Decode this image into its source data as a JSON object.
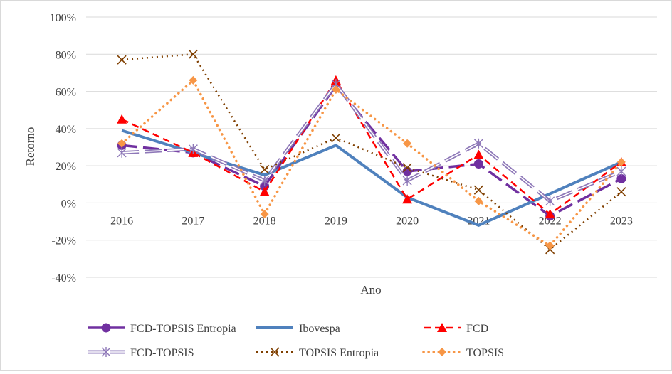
{
  "chart_data": {
    "type": "line",
    "title": "",
    "xlabel": "Ano",
    "ylabel": "Retorno",
    "categories": [
      "2016",
      "2017",
      "2018",
      "2019",
      "2020",
      "2021",
      "2022",
      "2023"
    ],
    "ylim": [
      -0.4,
      1.0
    ],
    "yticks": [
      -0.4,
      -0.2,
      0,
      0.2,
      0.4,
      0.6,
      0.8,
      1.0
    ],
    "ytick_labels": [
      "-40%",
      "-20%",
      "0%",
      "20%",
      "40%",
      "60%",
      "80%",
      "100%"
    ],
    "grid": true,
    "legend_position": "bottom",
    "series": [
      {
        "name": "FCD-TOPSIS Entropia",
        "color": "#7030a0",
        "style": "long-dash",
        "marker": "circle",
        "values": [
          0.31,
          0.27,
          0.09,
          0.63,
          0.17,
          0.21,
          -0.07,
          0.13
        ]
      },
      {
        "name": "Ibovespa",
        "color": "#4f81bd",
        "style": "solid",
        "marker": "none",
        "values": [
          0.39,
          0.27,
          0.15,
          0.31,
          0.03,
          -0.12,
          0.05,
          0.22
        ]
      },
      {
        "name": "FCD",
        "color": "#ff0000",
        "style": "dash",
        "marker": "triangle",
        "values": [
          0.45,
          0.27,
          0.06,
          0.66,
          0.02,
          0.26,
          -0.06,
          0.22
        ]
      },
      {
        "name": "FCD-TOPSIS",
        "color": "#8e78b8",
        "style": "double-long-dash",
        "marker": "asterisk",
        "values": [
          0.27,
          0.29,
          0.12,
          0.64,
          0.12,
          0.32,
          0.01,
          0.17
        ]
      },
      {
        "name": "TOPSIS Entropia",
        "color": "#7f3f00",
        "style": "dot",
        "marker": "x",
        "values": [
          0.77,
          0.8,
          0.18,
          0.35,
          0.19,
          0.07,
          -0.25,
          0.06
        ]
      },
      {
        "name": "TOPSIS",
        "color": "#f79646",
        "style": "round-dot",
        "marker": "diamond",
        "values": [
          0.32,
          0.66,
          -0.06,
          0.61,
          0.32,
          0.01,
          -0.23,
          0.22
        ]
      }
    ]
  }
}
